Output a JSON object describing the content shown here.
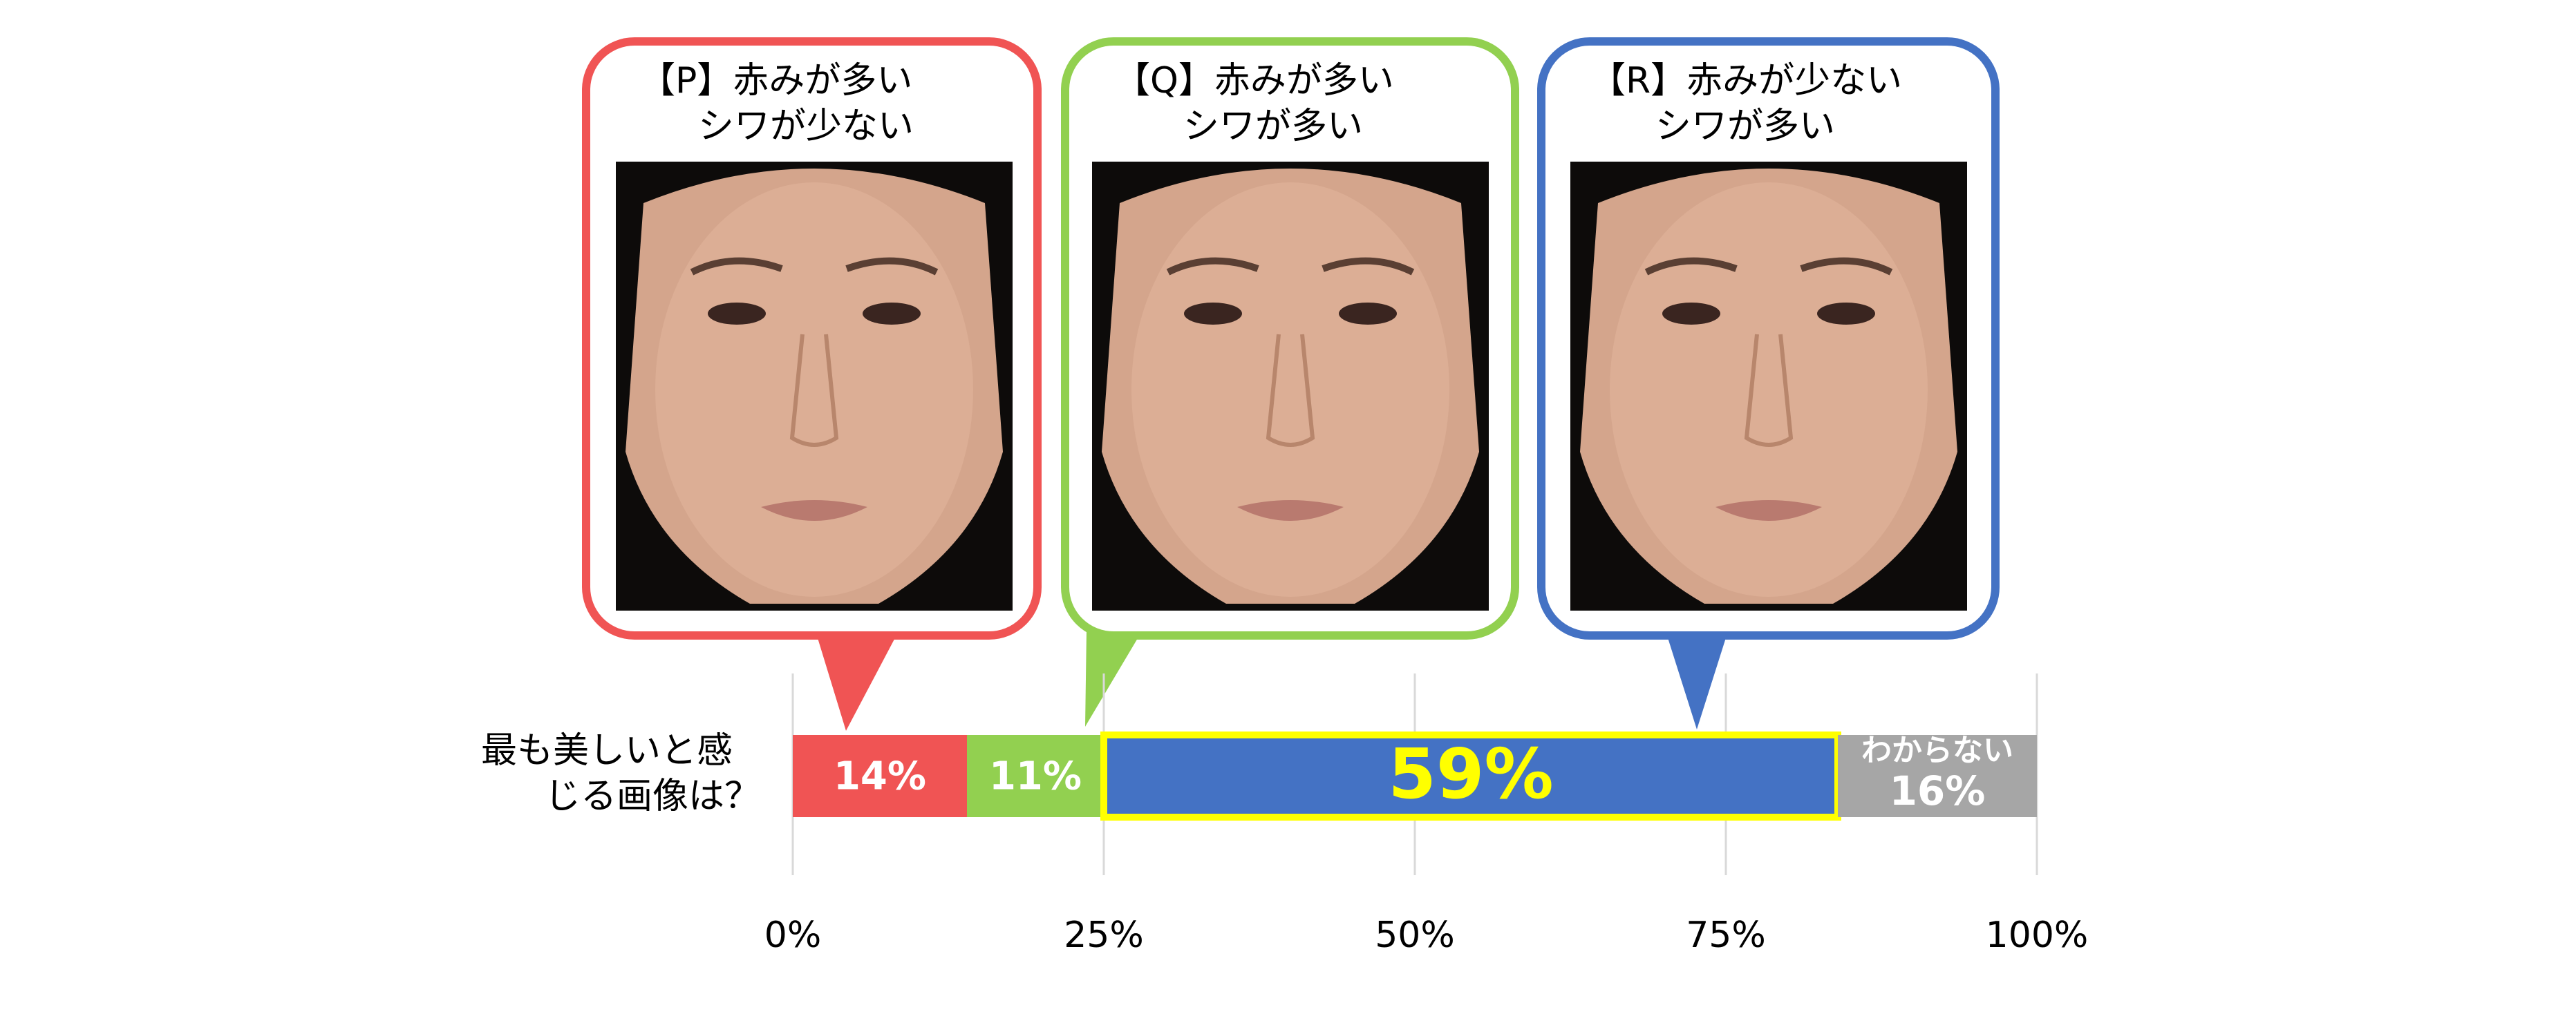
{
  "chart_data": {
    "type": "stacked_bar_horizontal",
    "categories": [
      "最も美しいと感じる画像は？"
    ],
    "series": [
      {
        "color": "#f05454",
        "label_color": "#ffffff",
        "values": [
          14
        ],
        "value_labels": [
          "14%"
        ]
      },
      {
        "color": "#92d050",
        "label_color": "#ffffff",
        "values": [
          11
        ],
        "value_labels": [
          "11%"
        ]
      },
      {
        "color": "#4472c4",
        "label_color": "#ffff00",
        "values": [
          59
        ],
        "value_labels": [
          "59%"
        ],
        "highlight": "#ffff00"
      },
      {
        "name": "わからない",
        "color": "#a6a6a6",
        "label_color": "#ffffff",
        "values": [
          16
        ],
        "value_labels": [
          "16%"
        ]
      }
    ],
    "xlim": [
      0,
      100
    ],
    "xticks": [
      {
        "value": 0,
        "label": "0%"
      },
      {
        "value": 25,
        "label": "25%"
      },
      {
        "value": 50,
        "label": "50%"
      },
      {
        "value": 75,
        "label": "75%"
      },
      {
        "value": 100,
        "label": "100%"
      }
    ],
    "grid": true
  },
  "callouts": [
    {
      "lines": [
        "【P】赤みが多い",
        "シワが少ない"
      ]
    },
    {
      "lines": [
        "【Q】赤みが多い",
        "シワが多い"
      ]
    },
    {
      "lines": [
        "【R】赤みが少ない",
        "シワが多い"
      ]
    }
  ]
}
